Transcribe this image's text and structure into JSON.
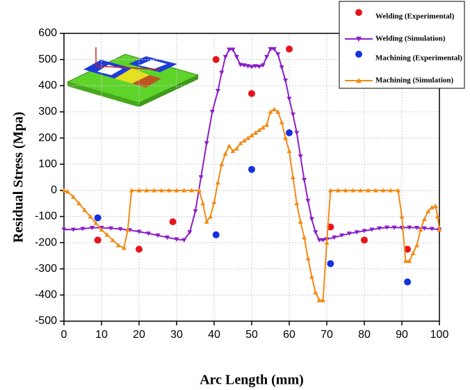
{
  "chart_data": {
    "type": "line",
    "x_label": "Arc Length (mm)",
    "y_label": "Residual Stress (Mpa)",
    "xlim": [
      0,
      100
    ],
    "xticks": [
      0,
      10,
      20,
      30,
      40,
      50,
      60,
      70,
      80,
      90,
      100
    ],
    "ylim": [
      -500,
      600
    ],
    "yticks": [
      -500,
      -400,
      -300,
      -200,
      -100,
      0,
      100,
      200,
      300,
      400,
      500,
      600
    ],
    "grid": true,
    "legend": "upper right",
    "series": [
      {
        "name": "Welding (Experimental)",
        "type": "scatter",
        "marker": "circle",
        "color": "#e8141c",
        "x": [
          9,
          20,
          29,
          40.5,
          50,
          60,
          71,
          80,
          91.5
        ],
        "values": [
          -190,
          -225,
          -120,
          500,
          370,
          540,
          -140,
          -190,
          -225
        ]
      },
      {
        "name": "Welding (Simulation)",
        "type": "line",
        "marker": "triangle-down",
        "color": "#8a1ec8",
        "x": [
          0,
          2.5,
          5,
          7.5,
          10,
          12.5,
          15,
          17.5,
          20,
          22.5,
          25,
          27.5,
          30,
          32,
          33.5,
          35,
          36.5,
          38,
          39.5,
          41,
          42,
          43,
          44,
          45,
          46,
          47,
          48,
          49,
          50,
          51,
          52,
          53,
          54,
          55,
          56,
          57,
          58,
          59,
          60,
          61,
          62,
          63,
          64,
          65,
          66,
          67,
          68,
          69,
          70,
          72,
          74,
          76,
          78,
          80,
          82,
          84,
          86,
          88,
          90,
          92,
          94,
          96,
          98,
          100
        ],
        "values": [
          -150,
          -150,
          -147,
          -143,
          -143,
          -145,
          -148,
          -152,
          -158,
          -165,
          -172,
          -180,
          -187,
          -190,
          -160,
          -80,
          50,
          180,
          300,
          380,
          450,
          510,
          538,
          538,
          510,
          480,
          478,
          475,
          472,
          475,
          473,
          478,
          510,
          540,
          540,
          520,
          470,
          420,
          350,
          290,
          220,
          130,
          40,
          -40,
          -110,
          -160,
          -190,
          -190,
          -187,
          -180,
          -172,
          -165,
          -160,
          -155,
          -150,
          -145,
          -142,
          -142,
          -143,
          -142,
          -143,
          -145,
          -147,
          -150
        ]
      },
      {
        "name": "Machining (Experimental)",
        "type": "scatter",
        "marker": "circle",
        "color": "#1430e0",
        "x": [
          9,
          40.5,
          50,
          60,
          71,
          91.5
        ],
        "values": [
          -105,
          -170,
          80,
          220,
          -280,
          -350
        ]
      },
      {
        "name": "Machining (Simulation)",
        "type": "line",
        "marker": "triangle-up",
        "color": "#f28a14",
        "x": [
          0,
          1,
          2.5,
          4,
          5.5,
          7,
          8.5,
          10,
          11.5,
          13,
          14.5,
          16,
          17,
          18,
          20,
          22,
          24,
          26,
          28,
          30,
          32,
          34,
          36,
          37,
          38,
          39,
          40,
          41,
          42,
          43,
          44,
          45,
          46,
          47,
          48,
          49,
          50,
          51,
          52,
          53,
          54,
          55,
          56,
          57,
          58,
          59,
          60,
          61,
          62,
          63,
          64,
          65,
          66,
          67,
          68,
          69,
          70,
          71,
          73,
          75,
          77,
          79,
          81,
          83,
          85,
          87,
          89,
          90,
          91,
          92,
          93,
          94,
          95,
          96,
          97,
          98,
          99,
          99.5,
          100
        ],
        "values": [
          0,
          -5,
          -25,
          -50,
          -75,
          -100,
          -125,
          -150,
          -170,
          -190,
          -210,
          -220,
          -150,
          0,
          0,
          0,
          0,
          0,
          0,
          0,
          0,
          0,
          0,
          -50,
          -120,
          -100,
          -45,
          30,
          100,
          140,
          170,
          150,
          160,
          180,
          190,
          200,
          210,
          220,
          230,
          240,
          250,
          300,
          310,
          300,
          260,
          200,
          150,
          50,
          -50,
          -120,
          -180,
          -260,
          -330,
          -390,
          -420,
          -420,
          -200,
          0,
          0,
          0,
          0,
          0,
          0,
          0,
          0,
          0,
          0,
          -100,
          -270,
          -270,
          -240,
          -210,
          -150,
          -110,
          -80,
          -65,
          -60,
          -100,
          -150
        ]
      }
    ]
  }
}
